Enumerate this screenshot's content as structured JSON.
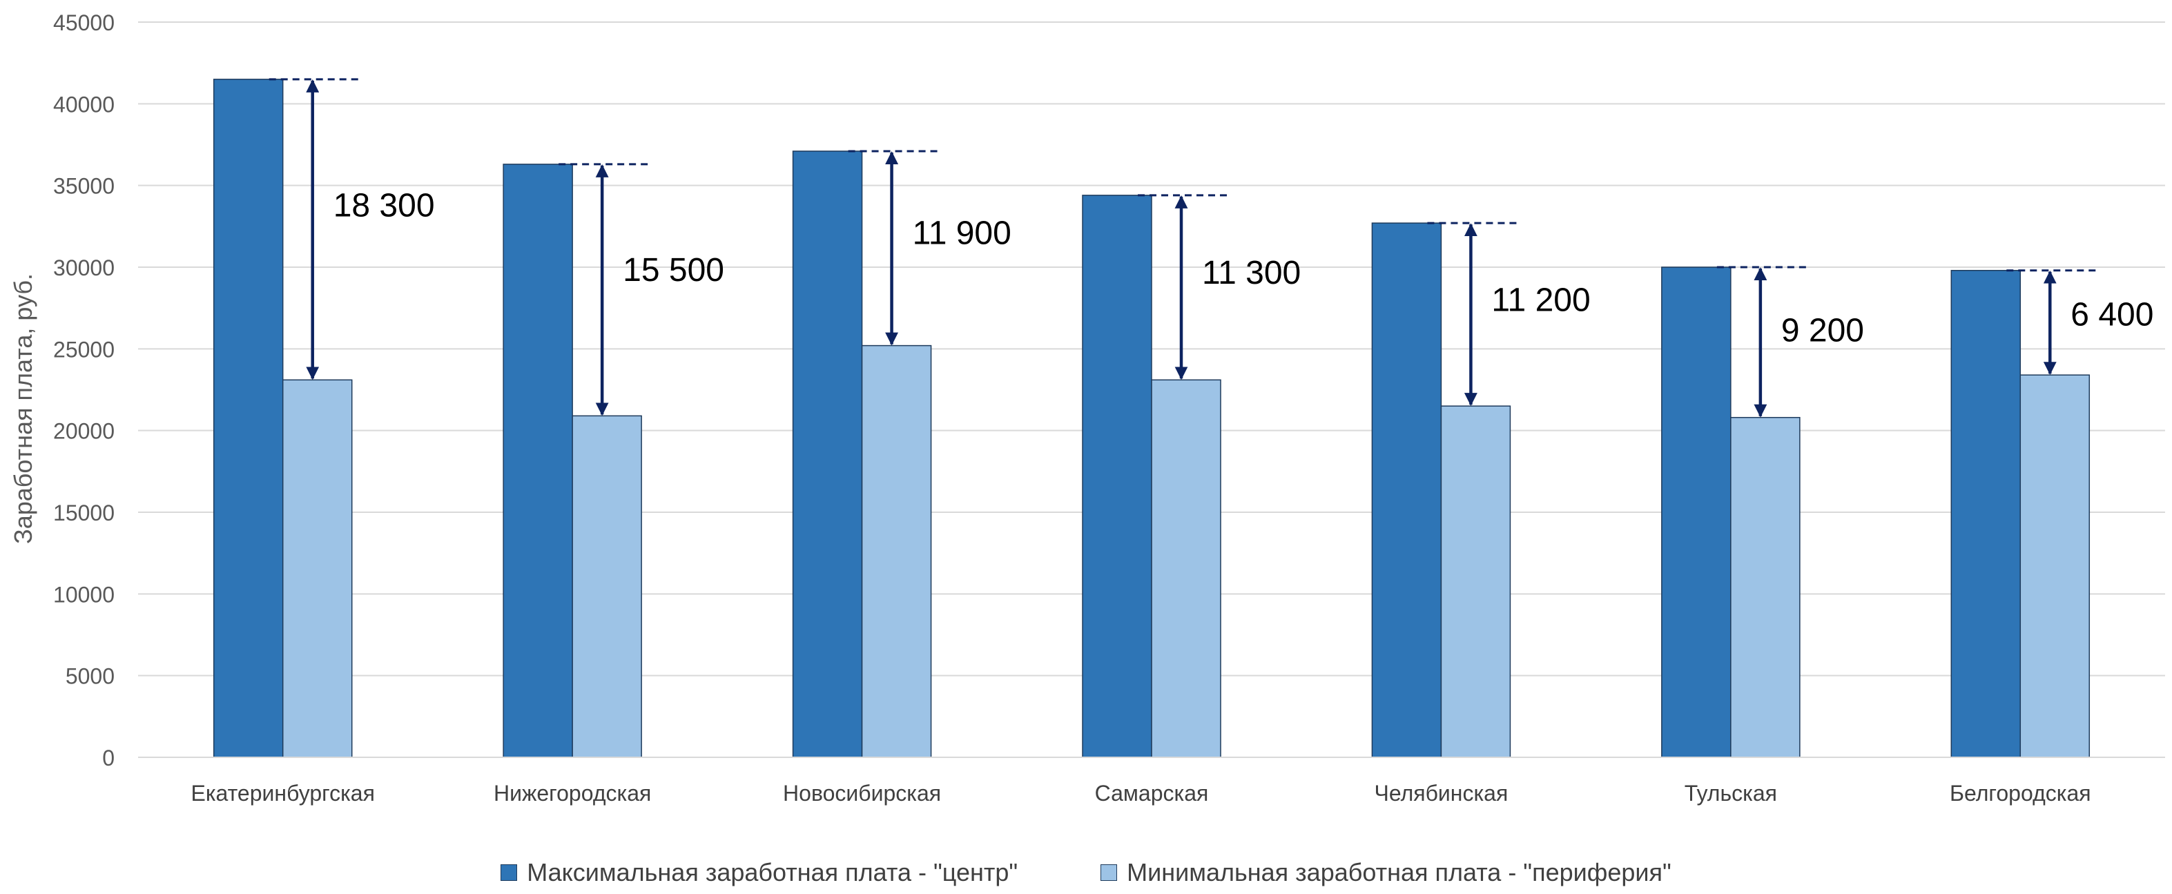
{
  "chart_data": {
    "type": "bar",
    "title": "",
    "xlabel": "",
    "ylabel": "Заработная плата, руб.",
    "ylim": [
      0,
      45000
    ],
    "yticks": [
      0,
      5000,
      10000,
      15000,
      20000,
      25000,
      30000,
      35000,
      40000,
      45000
    ],
    "grid": true,
    "legend_position": "bottom",
    "categories": [
      "Екатеринбургская",
      "Нижегородская",
      "Новосибирская",
      "Самарская",
      "Челябинская",
      "Тульская",
      "Белгородская"
    ],
    "series": [
      {
        "name": "Максимальная заработная плата - \"центр\"",
        "color": "#2e75b6",
        "values": [
          41500,
          36300,
          37100,
          34400,
          32700,
          30000,
          29800
        ]
      },
      {
        "name": "Минимальная заработная плата - \"периферия\"",
        "color": "#9dc3e6",
        "values": [
          23100,
          20900,
          25200,
          23100,
          21500,
          20800,
          23400
        ]
      }
    ],
    "annotations": [
      "18 300",
      "15 500",
      "11 900",
      "11 300",
      "11 200",
      "9 200",
      "6 400"
    ],
    "annotation_color": "#0d2360"
  }
}
